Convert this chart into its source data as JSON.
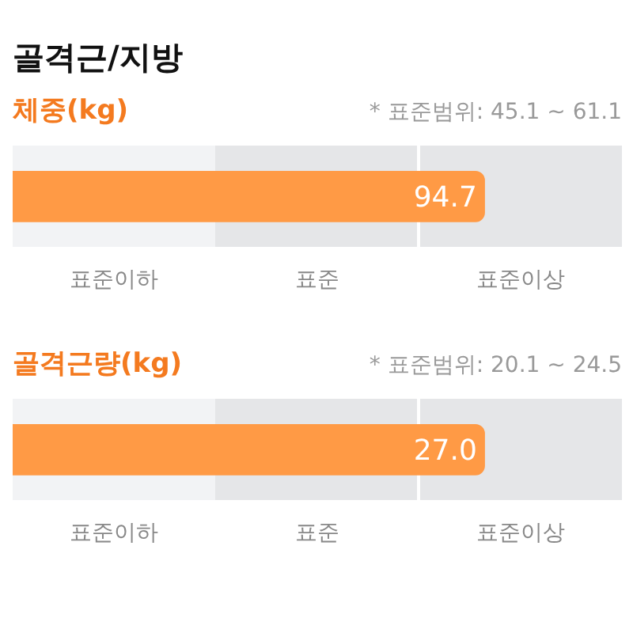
{
  "chart_data": [
    {
      "type": "other",
      "title": "골격근/지방",
      "subtitle": "체중(kg)",
      "categories": [
        null
      ],
      "values": [
        94.7
      ],
      "data_labels": true,
      "color": "#ff9a45",
      "annotations": [
        "* 표준범위: 45.1 ~ 61.1",
        "표준이하",
        "표준",
        "표준이상"
      ]
    },
    {
      "type": "other",
      "title": "골격근량(kg)",
      "categories": [
        null
      ],
      "values": [
        27.0
      ],
      "value_labels": [
        "27.0"
      ],
      "color": "#ff9a45",
      "annotations": [
        "* 표준범위: 20.1 ~ 24.5",
        "표준이하",
        "표준",
        "표준이상"
      ]
    }
  ]
}
